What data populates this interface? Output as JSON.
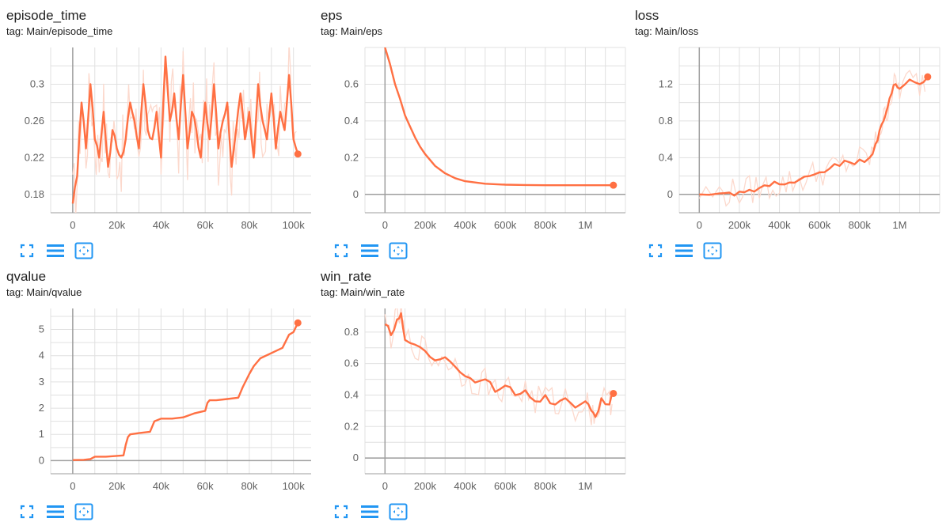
{
  "colors": {
    "line": "#ff7043",
    "raw": "#fcd9cd",
    "grid": "#e0e0e0",
    "axis": "#9e9e9e",
    "tool": "#2196f3"
  },
  "toolbar_icons": [
    "fullscreen-icon",
    "toggle-log-scale-icon",
    "fit-domain-icon"
  ],
  "chart_data": [
    {
      "type": "line",
      "title": "episode_time",
      "tag": "tag: Main/episode_time",
      "xlim": [
        -10000,
        108000
      ],
      "ylim": [
        0.16,
        0.34
      ],
      "x_ticks": [
        0,
        20000,
        40000,
        60000,
        80000,
        100000
      ],
      "x_tick_labels": [
        "0",
        "20k",
        "40k",
        "60k",
        "80k",
        "100k"
      ],
      "y_ticks": [
        0.18,
        0.22,
        0.26,
        0.3
      ],
      "y_tick_labels": [
        "0.18",
        "0.22",
        "0.26",
        "0.3"
      ],
      "series": [
        {
          "x": [
            0,
            2000,
            4000,
            6000,
            8000,
            10000,
            12000,
            14000,
            16000,
            18000,
            20000,
            22000,
            24000,
            26000,
            28000,
            30000,
            32000,
            34000,
            36000,
            38000,
            40000,
            42000,
            44000,
            46000,
            48000,
            50000,
            52000,
            54000,
            56000,
            58000,
            60000,
            62000,
            64000,
            66000,
            68000,
            70000,
            72000,
            74000,
            76000,
            78000,
            80000,
            82000,
            84000,
            86000,
            88000,
            90000,
            92000,
            94000,
            96000,
            98000,
            100000,
            102000
          ],
          "values": [
            0.17,
            0.2,
            0.28,
            0.23,
            0.3,
            0.24,
            0.22,
            0.27,
            0.21,
            0.25,
            0.23,
            0.22,
            0.24,
            0.28,
            0.26,
            0.23,
            0.3,
            0.25,
            0.24,
            0.27,
            0.22,
            0.33,
            0.26,
            0.29,
            0.24,
            0.31,
            0.23,
            0.27,
            0.25,
            0.22,
            0.28,
            0.24,
            0.3,
            0.23,
            0.26,
            0.28,
            0.21,
            0.25,
            0.29,
            0.24,
            0.27,
            0.22,
            0.3,
            0.26,
            0.24,
            0.29,
            0.23,
            0.27,
            0.25,
            0.31,
            0.24,
            0.224
          ]
        }
      ]
    },
    {
      "type": "line",
      "title": "eps",
      "tag": "tag: Main/eps",
      "xlim": [
        -100000,
        1200000
      ],
      "ylim": [
        -0.1,
        0.8
      ],
      "x_ticks": [
        0,
        200000,
        400000,
        600000,
        800000,
        1000000
      ],
      "x_tick_labels": [
        "0",
        "200k",
        "400k",
        "600k",
        "800k",
        "1M"
      ],
      "y_ticks": [
        0,
        0.2,
        0.4,
        0.6
      ],
      "y_tick_labels": [
        "0",
        "0.2",
        "0.4",
        "0.6"
      ],
      "series": [
        {
          "x": [
            0,
            25000,
            50000,
            75000,
            100000,
            125000,
            150000,
            175000,
            200000,
            250000,
            300000,
            350000,
            400000,
            500000,
            600000,
            700000,
            800000,
            900000,
            1000000,
            1100000,
            1140000
          ],
          "values": [
            0.8,
            0.71,
            0.6,
            0.52,
            0.43,
            0.37,
            0.31,
            0.26,
            0.22,
            0.155,
            0.115,
            0.088,
            0.072,
            0.058,
            0.053,
            0.051,
            0.05,
            0.05,
            0.05,
            0.05,
            0.05
          ]
        }
      ]
    },
    {
      "type": "line",
      "title": "loss",
      "tag": "tag: Main/loss",
      "xlim": [
        -100000,
        1200000
      ],
      "ylim": [
        -0.2,
        1.6
      ],
      "x_ticks": [
        0,
        200000,
        400000,
        600000,
        800000,
        1000000
      ],
      "x_tick_labels": [
        "0",
        "200k",
        "400k",
        "600k",
        "800k",
        "1M"
      ],
      "y_ticks": [
        0,
        0.4,
        0.8,
        1.2
      ],
      "y_tick_labels": [
        "0",
        "0.4",
        "0.8",
        "1.2"
      ],
      "series": [
        {
          "x": [
            0,
            100000,
            150000,
            200000,
            250000,
            300000,
            350000,
            400000,
            450000,
            500000,
            550000,
            600000,
            650000,
            700000,
            750000,
            800000,
            850000,
            880000,
            900000,
            920000,
            940000,
            960000,
            980000,
            1000000,
            1050000,
            1100000,
            1140000
          ],
          "values": [
            0.0,
            0.01,
            0.02,
            0.03,
            0.05,
            0.07,
            0.09,
            0.11,
            0.13,
            0.16,
            0.2,
            0.24,
            0.28,
            0.31,
            0.35,
            0.38,
            0.4,
            0.55,
            0.7,
            0.8,
            0.95,
            1.1,
            1.2,
            1.15,
            1.25,
            1.2,
            1.28
          ]
        }
      ]
    },
    {
      "type": "line",
      "title": "qvalue",
      "tag": "tag: Main/qvalue",
      "xlim": [
        -10000,
        108000
      ],
      "ylim": [
        -0.5,
        5.8
      ],
      "x_ticks": [
        0,
        20000,
        40000,
        60000,
        80000,
        100000
      ],
      "x_tick_labels": [
        "0",
        "20k",
        "40k",
        "60k",
        "80k",
        "100k"
      ],
      "y_ticks": [
        0,
        1,
        2,
        3,
        4,
        5
      ],
      "y_tick_labels": [
        "0",
        "1",
        "2",
        "3",
        "4",
        "5"
      ],
      "series": [
        {
          "x": [
            0,
            5000,
            8000,
            10000,
            15000,
            20000,
            23000,
            24000,
            25000,
            26000,
            30000,
            35000,
            37000,
            40000,
            45000,
            50000,
            55000,
            60000,
            61000,
            62000,
            65000,
            70000,
            75000,
            77000,
            80000,
            82000,
            85000,
            90000,
            95000,
            98000,
            100000,
            102000
          ],
          "values": [
            0.02,
            0.03,
            0.06,
            0.15,
            0.15,
            0.18,
            0.2,
            0.6,
            0.9,
            1.0,
            1.05,
            1.1,
            1.5,
            1.6,
            1.6,
            1.65,
            1.8,
            1.9,
            2.2,
            2.3,
            2.3,
            2.35,
            2.4,
            2.8,
            3.3,
            3.6,
            3.9,
            4.1,
            4.3,
            4.8,
            4.9,
            5.25
          ]
        }
      ]
    },
    {
      "type": "line",
      "title": "win_rate",
      "tag": "tag: Main/win_rate",
      "xlim": [
        -100000,
        1200000
      ],
      "ylim": [
        -0.1,
        0.95
      ],
      "x_ticks": [
        0,
        200000,
        400000,
        600000,
        800000,
        1000000
      ],
      "x_tick_labels": [
        "0",
        "200k",
        "400k",
        "600k",
        "800k",
        "1M"
      ],
      "y_ticks": [
        0,
        0.2,
        0.4,
        0.6,
        0.8
      ],
      "y_tick_labels": [
        "0",
        "0.2",
        "0.4",
        "0.6",
        "0.8"
      ],
      "series": [
        {
          "x": [
            0,
            30000,
            60000,
            80000,
            100000,
            150000,
            200000,
            250000,
            300000,
            350000,
            400000,
            450000,
            500000,
            550000,
            600000,
            650000,
            700000,
            750000,
            800000,
            850000,
            900000,
            950000,
            1000000,
            1030000,
            1050000,
            1080000,
            1120000,
            1140000
          ],
          "values": [
            0.85,
            0.78,
            0.88,
            0.92,
            0.75,
            0.72,
            0.68,
            0.62,
            0.64,
            0.58,
            0.52,
            0.48,
            0.5,
            0.42,
            0.46,
            0.4,
            0.43,
            0.36,
            0.4,
            0.34,
            0.38,
            0.32,
            0.36,
            0.3,
            0.26,
            0.38,
            0.34,
            0.41
          ]
        }
      ]
    }
  ]
}
